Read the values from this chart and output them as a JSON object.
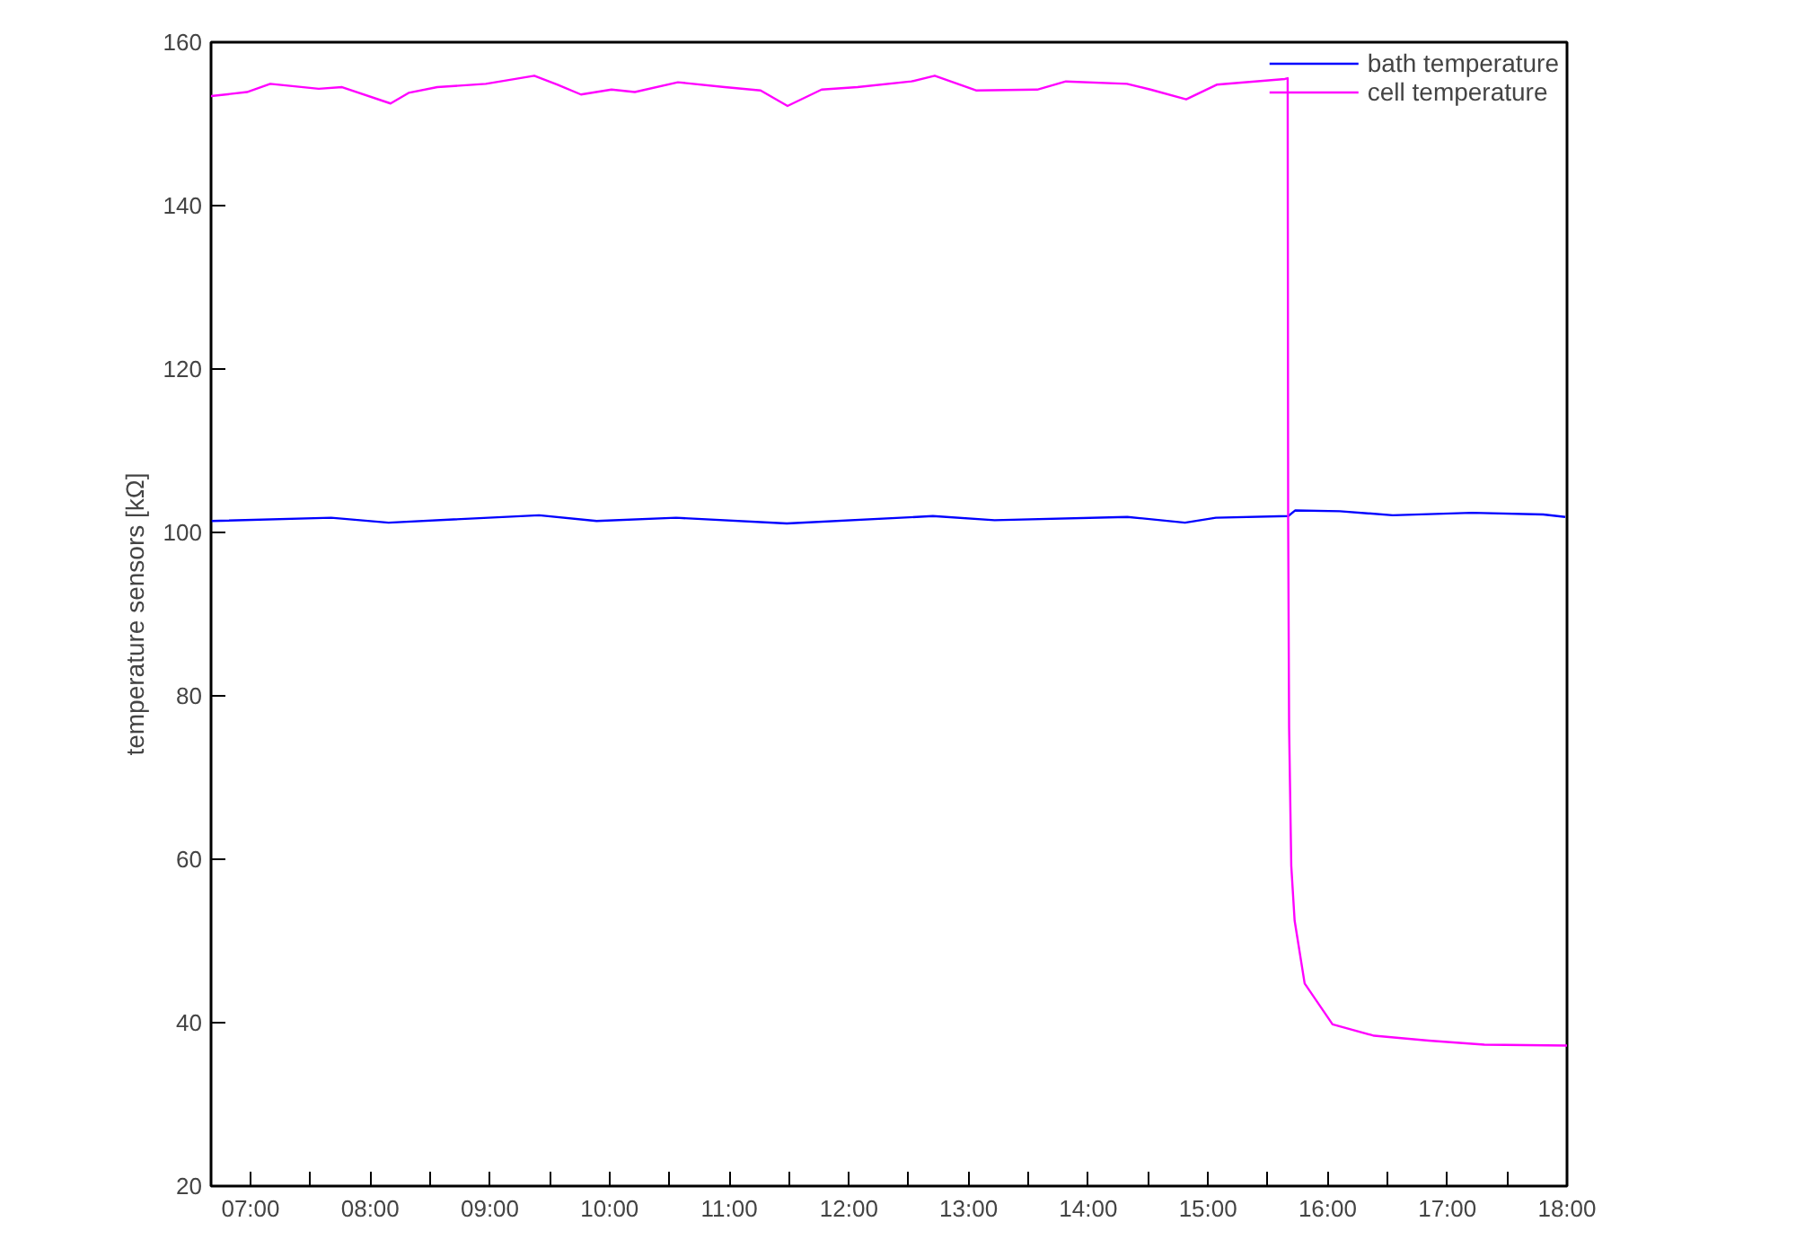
{
  "chart_data": {
    "type": "line",
    "ylabel": "temperature sensors [kΩ]",
    "xlim": [
      6.67,
      18.0
    ],
    "ylim": [
      20,
      160
    ],
    "xticks": [
      {
        "value": 7,
        "label": "07:00"
      },
      {
        "value": 7.5,
        "label": null
      },
      {
        "value": 8,
        "label": "08:00"
      },
      {
        "value": 8.5,
        "label": null
      },
      {
        "value": 9,
        "label": "09:00"
      },
      {
        "value": 9.5,
        "label": null
      },
      {
        "value": 10,
        "label": "10:00"
      },
      {
        "value": 10.5,
        "label": null
      },
      {
        "value": 11,
        "label": "11:00"
      },
      {
        "value": 11.5,
        "label": null
      },
      {
        "value": 12,
        "label": "12:00"
      },
      {
        "value": 12.5,
        "label": null
      },
      {
        "value": 13,
        "label": "13:00"
      },
      {
        "value": 13.5,
        "label": null
      },
      {
        "value": 14,
        "label": "14:00"
      },
      {
        "value": 14.5,
        "label": null
      },
      {
        "value": 15,
        "label": "15:00"
      },
      {
        "value": 15.5,
        "label": null
      },
      {
        "value": 16,
        "label": "16:00"
      },
      {
        "value": 16.5,
        "label": null
      },
      {
        "value": 17,
        "label": "17:00"
      },
      {
        "value": 17.5,
        "label": null
      },
      {
        "value": 18,
        "label": "18:00"
      }
    ],
    "yticks": [
      20,
      40,
      60,
      80,
      100,
      120,
      140,
      160
    ],
    "grid": false,
    "legend": "top right",
    "marker": "none",
    "line_style": "solid",
    "series": [
      {
        "name": "bath temperature",
        "color": "#0000ff",
        "x": [
          6.676,
          7.674,
          8.154,
          9.411,
          9.892,
          10.556,
          11.481,
          12.701,
          13.217,
          14.326,
          14.808,
          15.066,
          15.671,
          15.73,
          16.101,
          16.544,
          17.205,
          17.801,
          17.985
        ],
        "values": [
          101.4,
          101.8,
          101.2,
          102.1,
          101.4,
          101.8,
          101.1,
          102.0,
          101.5,
          101.9,
          101.2,
          101.8,
          102.0,
          102.7,
          102.6,
          102.1,
          102.4,
          102.2,
          101.9
        ]
      },
      {
        "name": "cell temperature",
        "color": "#ff00ff",
        "x": [
          6.67,
          6.97,
          7.165,
          7.57,
          7.765,
          8.17,
          8.321,
          8.561,
          8.966,
          9.371,
          9.566,
          9.761,
          10.016,
          10.211,
          10.571,
          10.962,
          11.262,
          11.487,
          11.772,
          12.072,
          12.522,
          12.717,
          13.062,
          13.573,
          13.813,
          14.323,
          14.52,
          14.818,
          15.073,
          15.643,
          15.666,
          15.67,
          15.678,
          15.696,
          15.724,
          15.808,
          16.041,
          16.388,
          16.844,
          17.309,
          18.0
        ],
        "values": [
          153.4,
          153.9,
          154.9,
          154.3,
          154.5,
          152.5,
          153.8,
          154.5,
          154.9,
          155.9,
          154.8,
          153.6,
          154.2,
          153.9,
          155.1,
          154.5,
          154.1,
          152.2,
          154.2,
          154.5,
          155.2,
          155.9,
          154.1,
          154.2,
          155.2,
          154.9,
          154.2,
          153.0,
          154.8,
          155.5,
          155.6,
          101.5,
          76.1,
          59.2,
          52.5,
          44.8,
          39.8,
          38.4,
          37.8,
          37.3,
          37.2
        ]
      }
    ]
  }
}
